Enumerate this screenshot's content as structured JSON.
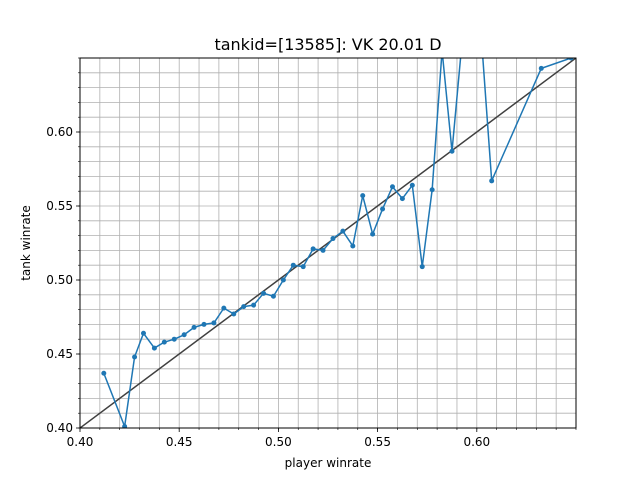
{
  "chart_data": {
    "type": "line",
    "title": "tankid=[13585]: VK 20.01 D",
    "xlabel": "player winrate",
    "ylabel": "tank winrate",
    "xlim": [
      0.4,
      0.65
    ],
    "ylim": [
      0.4,
      0.65
    ],
    "x_ticks": [
      "0.40",
      "0.45",
      "0.50",
      "0.55",
      "0.60"
    ],
    "y_ticks": [
      "0.40",
      "0.45",
      "0.50",
      "0.55",
      "0.60"
    ],
    "grid": true,
    "minor_grid": true,
    "series": [
      {
        "color": "#1f77b4",
        "marker": "circle",
        "points": [
          [
            0.412,
            0.437
          ],
          [
            0.4225,
            0.401
          ],
          [
            0.4275,
            0.448
          ],
          [
            0.432,
            0.464
          ],
          [
            0.4375,
            0.454
          ],
          [
            0.4425,
            0.458
          ],
          [
            0.4475,
            0.46
          ],
          [
            0.4525,
            0.463
          ],
          [
            0.4575,
            0.468
          ],
          [
            0.4625,
            0.47
          ],
          [
            0.4675,
            0.471
          ],
          [
            0.4725,
            0.481
          ],
          [
            0.4775,
            0.477
          ],
          [
            0.4825,
            0.482
          ],
          [
            0.4875,
            0.483
          ],
          [
            0.4925,
            0.491
          ],
          [
            0.4975,
            0.489
          ],
          [
            0.5025,
            0.5
          ],
          [
            0.5075,
            0.51
          ],
          [
            0.5125,
            0.509
          ],
          [
            0.5175,
            0.521
          ],
          [
            0.5225,
            0.52
          ],
          [
            0.5275,
            0.528
          ],
          [
            0.5325,
            0.533
          ],
          [
            0.5375,
            0.523
          ],
          [
            0.5425,
            0.557
          ],
          [
            0.5475,
            0.531
          ],
          [
            0.5525,
            0.548
          ],
          [
            0.5575,
            0.563
          ],
          [
            0.5625,
            0.555
          ],
          [
            0.5675,
            0.564
          ],
          [
            0.5725,
            0.509
          ],
          [
            0.5775,
            0.561
          ],
          [
            0.5825,
            0.655
          ],
          [
            0.5875,
            0.587
          ],
          [
            0.5925,
            0.66
          ],
          [
            0.6025,
            0.66
          ],
          [
            0.6075,
            0.567
          ],
          [
            0.6325,
            0.643
          ],
          [
            0.6475,
            0.65
          ]
        ]
      },
      {
        "color": "#404040",
        "marker": "none",
        "points": [
          [
            0.4,
            0.4
          ],
          [
            0.65,
            0.65
          ]
        ]
      }
    ]
  }
}
